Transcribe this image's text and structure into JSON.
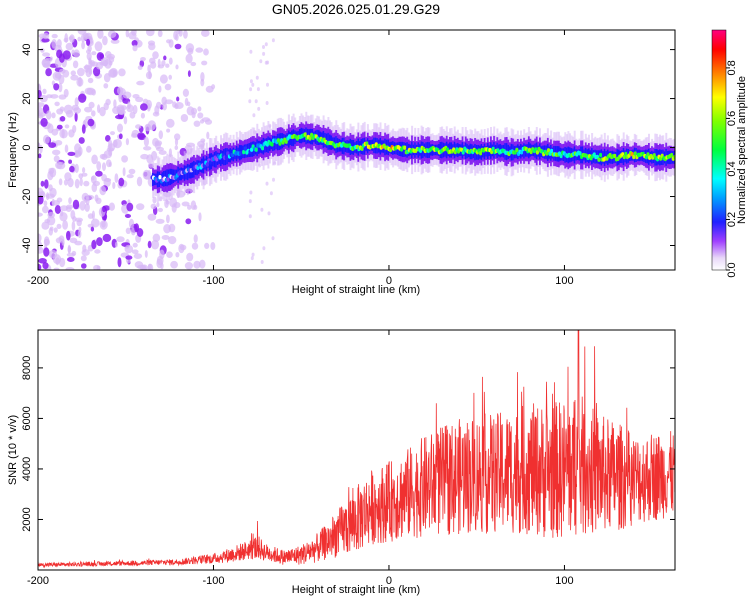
{
  "title": "GN05.2026.025.01.29.G29",
  "chart_data": [
    {
      "type": "heatmap",
      "title": "GN05.2026.025.01.29.G29",
      "xlabel": "Height of straight line (km)",
      "ylabel": "Frequency (Hz)",
      "xlim": [
        -200,
        163
      ],
      "ylim": [
        -50,
        48
      ],
      "xticks": [
        -200,
        -100,
        0,
        100
      ],
      "yticks": [
        -40,
        -20,
        0,
        20,
        40
      ],
      "colorbar": {
        "label": "Normalized spectral amplitude",
        "range": [
          0,
          0.95
        ],
        "ticks": [
          0.0,
          0.2,
          0.4,
          0.6,
          0.8
        ],
        "colormap": [
          "#ffffff",
          "#e8d8f8",
          "#8000ff",
          "#0000ff",
          "#00ffff",
          "#00ff00",
          "#ffff00",
          "#ff8000",
          "#ff0000",
          "#ff0080"
        ]
      },
      "ridge": {
        "x": [
          -130,
          -115,
          -100,
          -90,
          -80,
          -70,
          -60,
          -50,
          -40,
          -30,
          -20,
          -10,
          0,
          10,
          20,
          30,
          40,
          50,
          60,
          70,
          80,
          90,
          100,
          110,
          120,
          130,
          140,
          150,
          160
        ],
        "freq": [
          -13,
          -10,
          -5,
          -3,
          -1,
          1,
          3,
          5,
          4,
          1,
          0,
          1,
          0,
          -1,
          -1,
          -1,
          -1,
          -2,
          -1,
          -2,
          -1,
          -2,
          -3,
          -3,
          -4,
          -4,
          -3,
          -4,
          -4
        ],
        "amplitude": [
          0.15,
          0.2,
          0.25,
          0.3,
          0.35,
          0.38,
          0.45,
          0.55,
          0.6,
          0.55,
          0.5,
          0.65,
          0.7,
          0.6,
          0.55,
          0.6,
          0.55,
          0.55,
          0.6,
          0.45,
          0.5,
          0.55,
          0.45,
          0.5,
          0.55,
          0.7,
          0.65,
          0.6,
          0.55
        ]
      },
      "noise_region_x": [
        -200,
        -110
      ]
    },
    {
      "type": "line",
      "xlabel": "Height of straight line (km)",
      "ylabel": "SNR (10 * v/v)",
      "xlim": [
        -200,
        163
      ],
      "ylim": [
        0,
        9500
      ],
      "xticks": [
        -200,
        -100,
        0,
        100
      ],
      "yticks": [
        2000,
        4000,
        6000,
        8000
      ],
      "color": "#f03030",
      "envelope": {
        "x": [
          -200,
          -180,
          -160,
          -140,
          -120,
          -100,
          -90,
          -80,
          -75,
          -70,
          -60,
          -50,
          -40,
          -30,
          -20,
          -10,
          0,
          10,
          20,
          30,
          40,
          50,
          60,
          70,
          80,
          90,
          100,
          110,
          120,
          130,
          140,
          150,
          160
        ],
        "mean": [
          200,
          220,
          250,
          280,
          320,
          450,
          600,
          800,
          900,
          700,
          500,
          600,
          900,
          1400,
          1900,
          2500,
          2700,
          3000,
          3300,
          3500,
          3700,
          3800,
          3800,
          3900,
          4000,
          3900,
          4000,
          4100,
          3800,
          3700,
          3600,
          3700,
          3800
        ],
        "spread": [
          80,
          80,
          90,
          100,
          120,
          200,
          300,
          400,
          500,
          350,
          300,
          400,
          600,
          900,
          1300,
          1500,
          1600,
          1800,
          2000,
          2200,
          2300,
          2400,
          2400,
          2500,
          2600,
          2700,
          2800,
          2800,
          2400,
          2200,
          1800,
          1800,
          1700
        ]
      },
      "peak": {
        "x": 108,
        "y": 9500
      }
    }
  ]
}
